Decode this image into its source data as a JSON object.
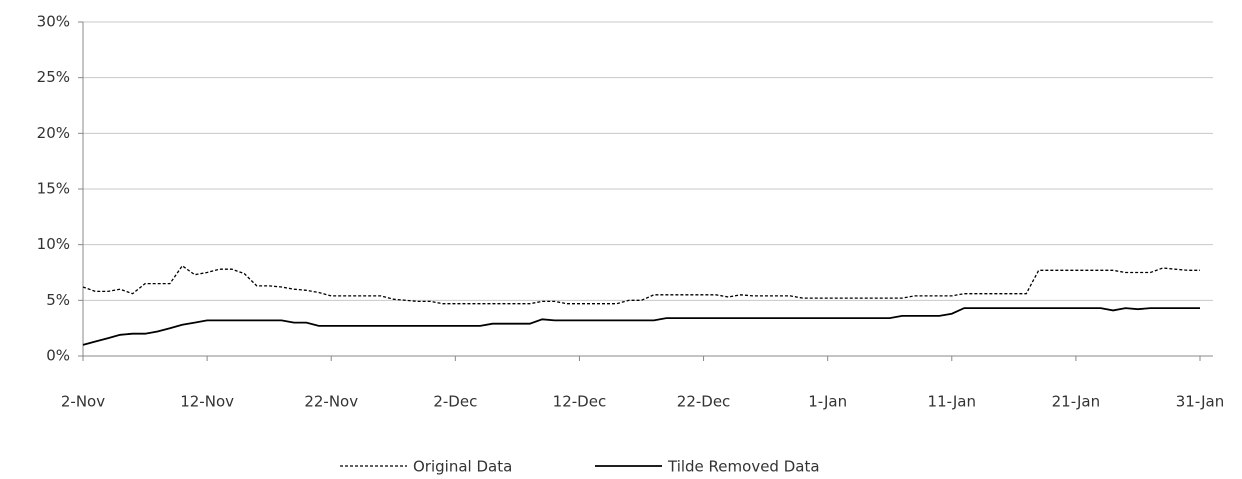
{
  "chart_data": {
    "type": "line",
    "categories": [
      "2-Nov",
      null,
      null,
      null,
      null,
      null,
      null,
      null,
      null,
      null,
      "12-Nov",
      null,
      null,
      null,
      null,
      null,
      null,
      null,
      null,
      null,
      "22-Nov",
      null,
      null,
      null,
      null,
      null,
      null,
      null,
      null,
      null,
      "2-Dec",
      null,
      null,
      null,
      null,
      null,
      null,
      null,
      null,
      null,
      "12-Dec",
      null,
      null,
      null,
      null,
      null,
      null,
      null,
      null,
      null,
      "22-Dec",
      null,
      null,
      null,
      null,
      null,
      null,
      null,
      null,
      null,
      "1-Jan",
      null,
      null,
      null,
      null,
      null,
      null,
      null,
      null,
      null,
      "11-Jan",
      null,
      null,
      null,
      null,
      null,
      null,
      null,
      null,
      null,
      "21-Jan",
      null,
      null,
      null,
      null,
      null,
      null,
      null,
      null,
      null,
      "31-Jan"
    ],
    "series": [
      {
        "name": "Original Data",
        "color": "#000000",
        "style": "dashed",
        "values": [
          6.2,
          5.8,
          5.8,
          6.0,
          5.6,
          6.5,
          6.5,
          6.5,
          8.1,
          7.3,
          7.5,
          7.8,
          7.8,
          7.4,
          6.3,
          6.3,
          6.2,
          6.0,
          5.9,
          5.7,
          5.4,
          5.4,
          5.4,
          5.4,
          5.4,
          5.1,
          5.0,
          4.9,
          4.9,
          4.7,
          4.7,
          4.7,
          4.7,
          4.7,
          4.7,
          4.7,
          4.7,
          4.9,
          4.9,
          4.7,
          4.7,
          4.7,
          4.7,
          4.7,
          5.0,
          5.0,
          5.5,
          5.5,
          5.5,
          5.5,
          5.5,
          5.5,
          5.3,
          5.5,
          5.4,
          5.4,
          5.4,
          5.4,
          5.2,
          5.2,
          5.2,
          5.2,
          5.2,
          5.2,
          5.2,
          5.2,
          5.2,
          5.4,
          5.4,
          5.4,
          5.4,
          5.6,
          5.6,
          5.6,
          5.6,
          5.6,
          5.6,
          7.7,
          7.7,
          7.7,
          7.7,
          7.7,
          7.7,
          7.7,
          7.5,
          7.5,
          7.5,
          7.9,
          7.8,
          7.7,
          7.7
        ]
      },
      {
        "name": "Tilde Removed Data",
        "color": "#000000",
        "style": "solid",
        "values": [
          1.0,
          1.3,
          1.6,
          1.9,
          2.0,
          2.0,
          2.2,
          2.5,
          2.8,
          3.0,
          3.2,
          3.2,
          3.2,
          3.2,
          3.2,
          3.2,
          3.2,
          3.0,
          3.0,
          2.7,
          2.7,
          2.7,
          2.7,
          2.7,
          2.7,
          2.7,
          2.7,
          2.7,
          2.7,
          2.7,
          2.7,
          2.7,
          2.7,
          2.9,
          2.9,
          2.9,
          2.9,
          3.3,
          3.2,
          3.2,
          3.2,
          3.2,
          3.2,
          3.2,
          3.2,
          3.2,
          3.2,
          3.4,
          3.4,
          3.4,
          3.4,
          3.4,
          3.4,
          3.4,
          3.4,
          3.4,
          3.4,
          3.4,
          3.4,
          3.4,
          3.4,
          3.4,
          3.4,
          3.4,
          3.4,
          3.4,
          3.6,
          3.6,
          3.6,
          3.6,
          3.8,
          4.3,
          4.3,
          4.3,
          4.3,
          4.3,
          4.3,
          4.3,
          4.3,
          4.3,
          4.3,
          4.3,
          4.3,
          4.1,
          4.3,
          4.2,
          4.3,
          4.3,
          4.3,
          4.3,
          4.3
        ]
      }
    ],
    "ylim": [
      0,
      30
    ],
    "yticks": [
      {
        "value": 0,
        "label": "0%"
      },
      {
        "value": 5,
        "label": "5%"
      },
      {
        "value": 10,
        "label": "10%"
      },
      {
        "value": 15,
        "label": "15%"
      },
      {
        "value": 20,
        "label": "20%"
      },
      {
        "value": 25,
        "label": "25%"
      },
      {
        "value": 30,
        "label": "30%"
      }
    ],
    "grid": true,
    "legend": "bottom"
  }
}
